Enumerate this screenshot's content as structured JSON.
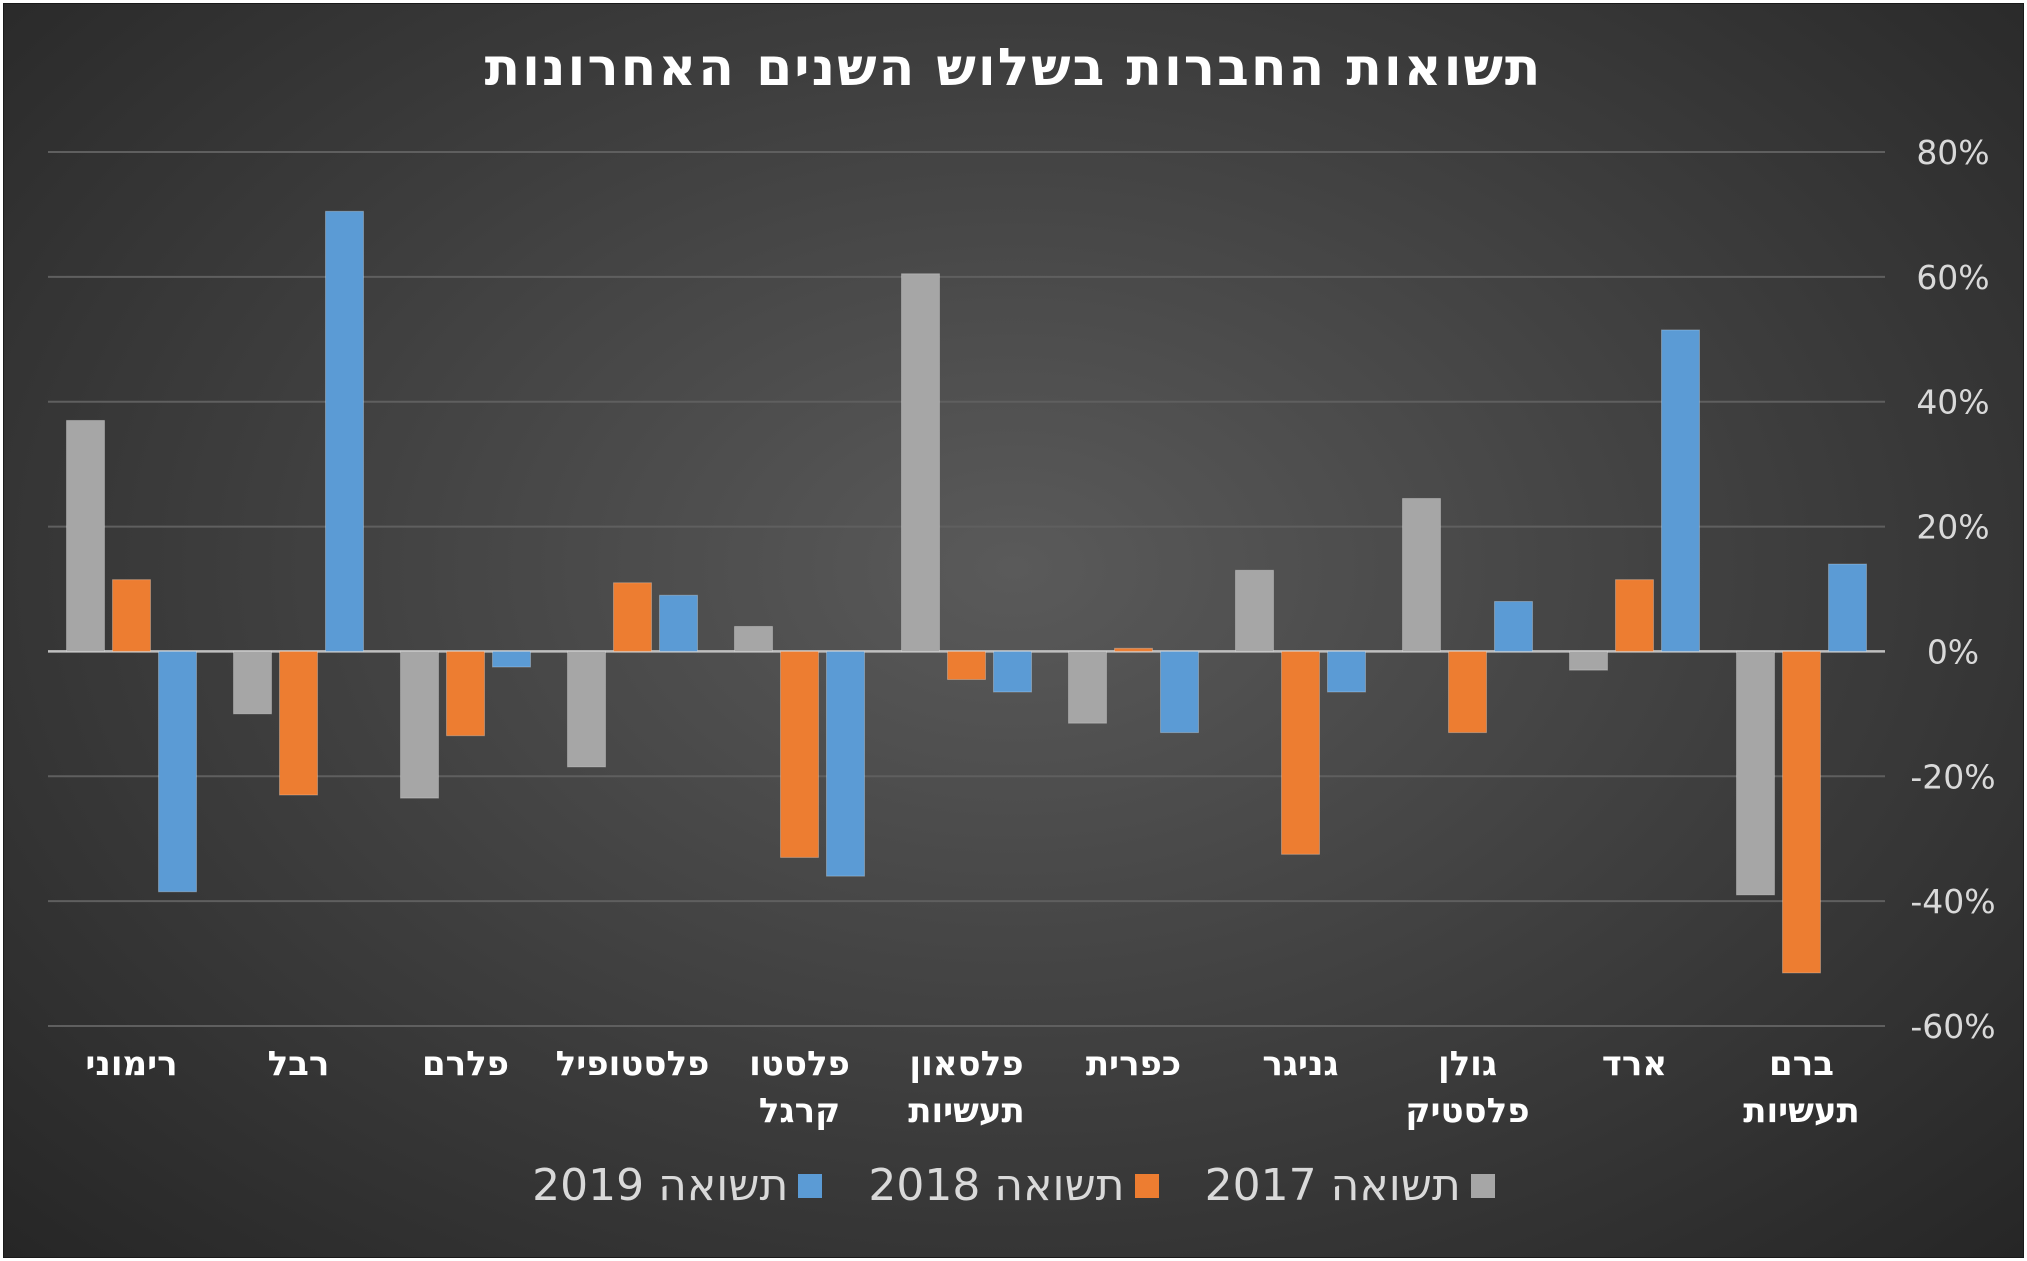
{
  "chart_data": {
    "type": "bar",
    "title": "תשואות החברות בשלוש השנים האחרונות",
    "categories": [
      [
        "ברם",
        "תעשיות"
      ],
      [
        "ארד"
      ],
      [
        "גולן",
        "פלסטיק"
      ],
      [
        "גניגר"
      ],
      [
        "כפרית"
      ],
      [
        "פלסאון",
        "תעשיות"
      ],
      [
        "פלסטו",
        "קרגל"
      ],
      [
        "פלסטופיל"
      ],
      [
        "פלרם"
      ],
      [
        "רבל"
      ],
      [
        "רימוני"
      ]
    ],
    "series": [
      {
        "name": "תשואה 2017",
        "color": "#a6a6a6",
        "values": [
          -0.39,
          -0.03,
          0.245,
          0.13,
          -0.115,
          0.605,
          0.04,
          -0.185,
          -0.235,
          -0.1,
          0.37
        ]
      },
      {
        "name": "תשואה 2018",
        "color": "#ed7d31",
        "values": [
          -0.515,
          0.115,
          -0.13,
          -0.325,
          0.005,
          -0.045,
          -0.33,
          0.11,
          -0.135,
          -0.23,
          0.115
        ]
      },
      {
        "name": "תשואה 2019",
        "color": "#5b9bd5",
        "values": [
          0.14,
          0.515,
          0.08,
          -0.065,
          -0.13,
          -0.065,
          -0.36,
          0.09,
          -0.025,
          0.705,
          -0.385
        ]
      }
    ],
    "ylim": [
      -0.6,
      0.8
    ],
    "yticks": [
      "80%",
      "60%",
      "40%",
      "20%",
      "0%",
      "-20%",
      "-40%",
      "-60%"
    ],
    "grid": true,
    "axis_side": "right",
    "category_order": "right-to-left",
    "legend": "bottom"
  }
}
